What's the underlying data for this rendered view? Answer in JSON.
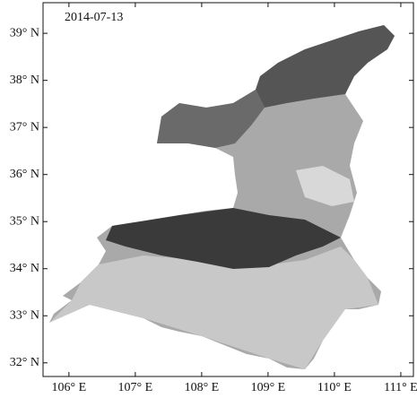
{
  "map": {
    "date_label": "2014-07-13",
    "xlim": [
      105.61,
      111.19
    ],
    "ylim": [
      31.71,
      39.65
    ],
    "xticks": [
      {
        "value": 106,
        "label": "106° E"
      },
      {
        "value": 107,
        "label": "107° E"
      },
      {
        "value": 108,
        "label": "108° E"
      },
      {
        "value": 109,
        "label": "109° E"
      },
      {
        "value": 110,
        "label": "110° E"
      },
      {
        "value": 111,
        "label": "111° E"
      }
    ],
    "yticks": [
      {
        "value": 32,
        "label": "32° N"
      },
      {
        "value": 33,
        "label": "33° N"
      },
      {
        "value": 34,
        "label": "34° N"
      },
      {
        "value": 35,
        "label": "35° N"
      },
      {
        "value": 36,
        "label": "36° N"
      },
      {
        "value": 37,
        "label": "37° N"
      },
      {
        "value": 38,
        "label": "38° N"
      },
      {
        "value": 39,
        "label": "39° N"
      }
    ]
  }
}
